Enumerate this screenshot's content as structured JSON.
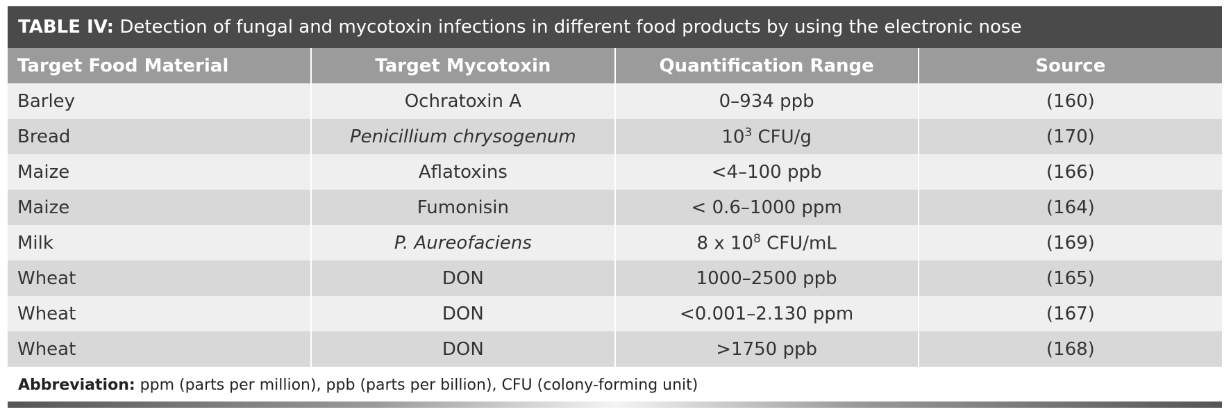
{
  "title": {
    "label": "TABLE IV:",
    "text": "Detection of fungal and mycotoxin infections in different food products by using the electronic nose"
  },
  "table": {
    "headers": [
      "Target Food Material",
      "Target Mycotoxin",
      "Quantification Range",
      "Source"
    ],
    "rows": [
      [
        "Barley",
        "Ochratoxin A",
        "0–934 ppb",
        "(160)"
      ],
      [
        "Bread",
        "Penicillium chrysogenum",
        [
          "10",
          "3",
          " CFU/g"
        ],
        "(170)"
      ],
      [
        "Maize",
        "Aflatoxins",
        "<4–100 ppb",
        "(166)"
      ],
      [
        "Maize",
        "Fumonisin",
        "< 0.6–1000 ppm",
        "(164)"
      ],
      [
        "Milk",
        "P. Aureofaciens",
        [
          "8 x 10",
          "8",
          " CFU/mL"
        ],
        "(169)"
      ],
      [
        "Wheat",
        "DON",
        "1000–2500 ppb",
        "(165)"
      ],
      [
        "Wheat",
        "DON",
        "<0.001–2.130 ppm",
        "(167)"
      ],
      [
        "Wheat",
        "DON",
        ">1750 ppb",
        "(168)"
      ]
    ]
  },
  "footer": {
    "label": "Abbreviation:",
    "text": "ppm (parts per million), ppb (parts per billion), CFU (colony-forming unit)"
  }
}
